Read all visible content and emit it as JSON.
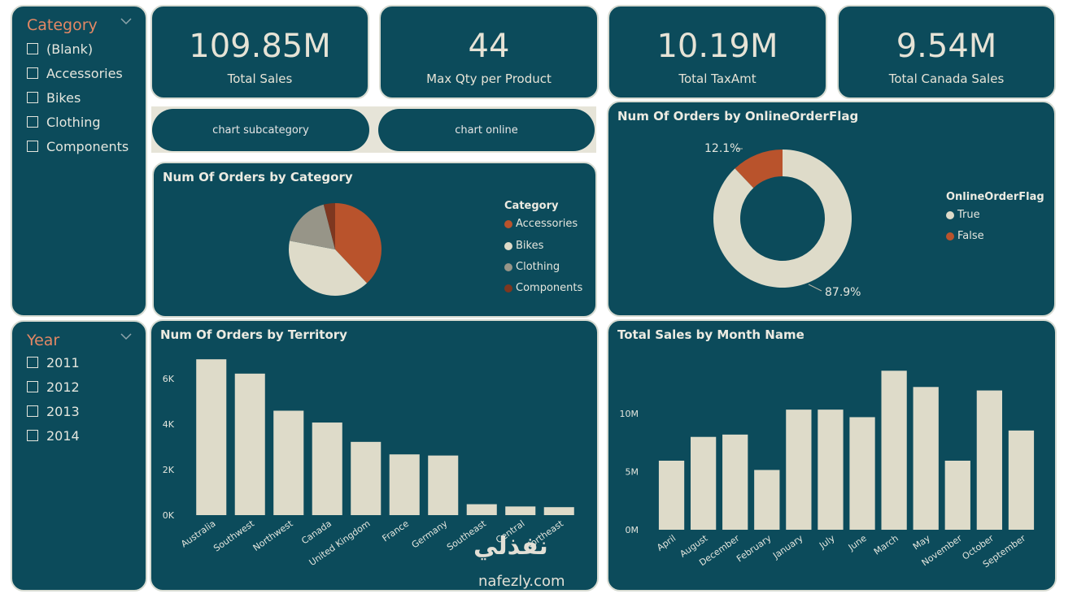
{
  "category_slicer": {
    "title": "Category",
    "items": [
      "(Blank)",
      "Accessories",
      "Bikes",
      "Clothing",
      "Components"
    ]
  },
  "year_slicer": {
    "title": "Year",
    "items": [
      "2011",
      "2012",
      "2013",
      "2014"
    ]
  },
  "kpis": [
    {
      "value": "109.85M",
      "label": "Total Sales"
    },
    {
      "value": "44",
      "label": "Max Qty per Product"
    },
    {
      "value": "10.19M",
      "label": "Total TaxAmt"
    },
    {
      "value": "9.54M",
      "label": "Total Canada Sales"
    }
  ],
  "nav": {
    "subcategory": "chart subcategory",
    "online": "chart online"
  },
  "colors": {
    "panel": "#0c4b5b",
    "bar": "#dedbc9",
    "accessories": "#b9532c",
    "bikes": "#dedbc9",
    "clothing": "#979588",
    "components": "#7e3720"
  },
  "category_pie": {
    "title": "Num Of Orders by Category",
    "legend_title": "Category",
    "chart_data": {
      "type": "pie",
      "categories": [
        "Accessories",
        "Bikes",
        "Clothing",
        "Components"
      ],
      "values": [
        38,
        40,
        18,
        4
      ]
    }
  },
  "online_donut": {
    "title": "Num Of Orders by OnlineOrderFlag",
    "legend_title": "OnlineOrderFlag",
    "chart_data": {
      "type": "pie",
      "categories": [
        "True",
        "False"
      ],
      "values": [
        87.9,
        12.1
      ],
      "data_labels": [
        "87.9%",
        "12.1%"
      ]
    }
  },
  "territory_bar": {
    "title": "Num Of Orders by Territory",
    "chart_data": {
      "type": "bar",
      "categories": [
        "Australia",
        "Southwest",
        "Northwest",
        "Canada",
        "United Kingdom",
        "France",
        "Germany",
        "Southeast",
        "Central",
        "Northeast"
      ],
      "values": [
        6850,
        6220,
        4590,
        4070,
        3220,
        2670,
        2620,
        480,
        380,
        350
      ],
      "yticks": [
        "0K",
        "2K",
        "4K",
        "6K"
      ],
      "ylim": [
        0,
        7000
      ]
    }
  },
  "month_bar": {
    "title": "Total Sales by Month Name",
    "chart_data": {
      "type": "bar",
      "categories": [
        "April",
        "August",
        "December",
        "February",
        "January",
        "July",
        "June",
        "March",
        "May",
        "November",
        "October",
        "September"
      ],
      "values": [
        5950000,
        8000000,
        8200000,
        5150000,
        10350000,
        10350000,
        9700000,
        13700000,
        12300000,
        5950000,
        12000000,
        8550000
      ],
      "yticks": [
        "0M",
        "5M",
        "10M"
      ],
      "ylim": [
        0,
        14000000
      ]
    }
  },
  "watermark": {
    "arabic": "نفذلي",
    "latin": "nafezly.com"
  }
}
